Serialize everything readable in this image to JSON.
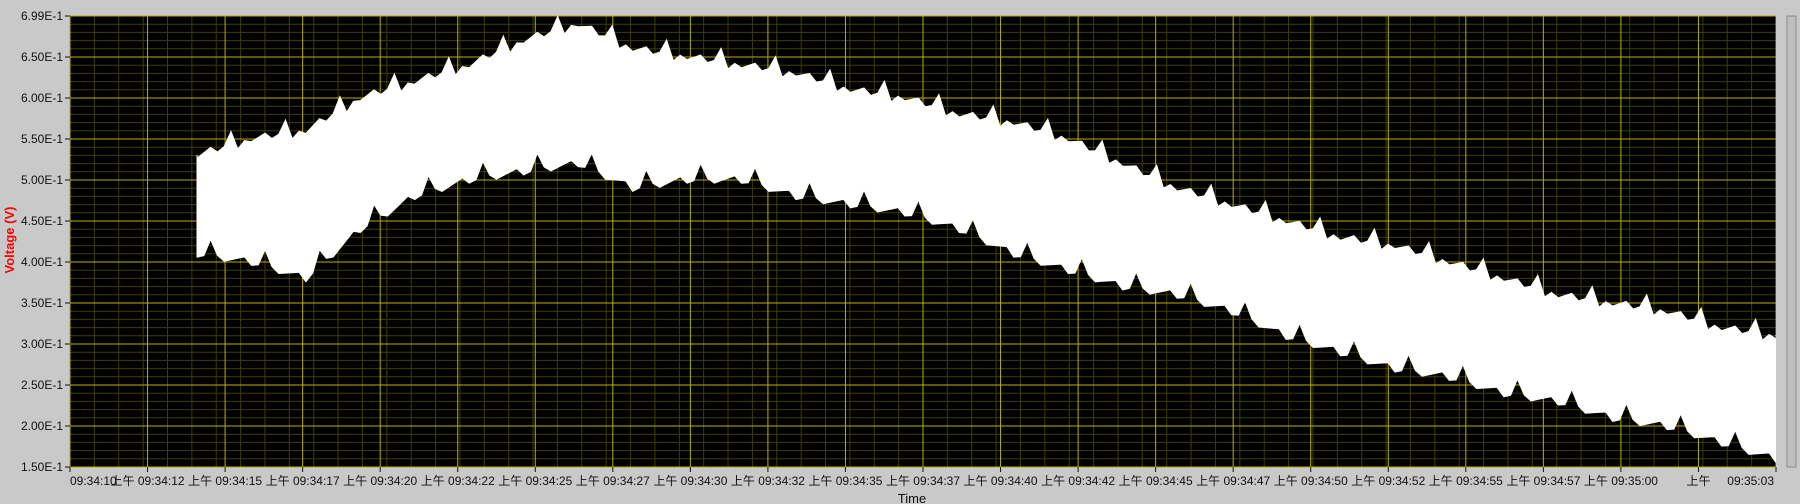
{
  "app": {
    "panel": "waveform-graph"
  },
  "colors": {
    "panel_bg": "#c9c9c9",
    "plot_bg": "#000000",
    "grid_major": "#b8b000",
    "grid_minor": "#3e3e00",
    "signal": "#ffffff",
    "axis_text": "#111111",
    "ylabel": "#ff0000"
  },
  "chart_data": {
    "type": "area",
    "title": "",
    "xlabel": "Time",
    "ylabel": "Voltage (V)",
    "grid": true,
    "legend": "none",
    "ylim": [
      0.15,
      0.699
    ],
    "xlim_labels": [
      "09:34:10",
      "09:35:03"
    ],
    "y_ticks": [
      "6.99E-1",
      "6.50E-1",
      "6.00E-1",
      "5.50E-1",
      "5.00E-1",
      "4.50E-1",
      "4.00E-1",
      "3.50E-1",
      "3.00E-1",
      "2.50E-1",
      "2.00E-1",
      "1.50E-1"
    ],
    "x_ticks": [
      "09:34:10",
      "上午 09:34:12",
      "上午 09:34:15",
      "上午 09:34:17",
      "上午 09:34:20",
      "上午 09:34:22",
      "上午 09:34:25",
      "上午 09:34:27",
      "上午 09:34:30",
      "上午 09:34:32",
      "上午 09:34:35",
      "上午 09:34:37",
      "上午 09:34:40",
      "上午 09:34:42",
      "上午 09:34:45",
      "上午 09:34:47",
      "上午 09:34:50",
      "上午 09:34:52",
      "上午 09:34:55",
      "上午 09:34:57",
      "上午 09:35:00",
      "上午",
      "09:35:03"
    ],
    "series": [
      {
        "values_upper": [
          0.53,
          0.55,
          0.56,
          0.6,
          0.62,
          0.64,
          0.67,
          0.69,
          0.66,
          0.65,
          0.64,
          0.63,
          0.61,
          0.6,
          0.58,
          0.57,
          0.55,
          0.52,
          0.49,
          0.47,
          0.45,
          0.43,
          0.42,
          0.4,
          0.38,
          0.36,
          0.35,
          0.34,
          0.32,
          0.31
        ],
        "values_lower": [
          0.41,
          0.4,
          0.38,
          0.44,
          0.48,
          0.5,
          0.51,
          0.52,
          0.49,
          0.5,
          0.5,
          0.48,
          0.47,
          0.46,
          0.44,
          0.41,
          0.39,
          0.37,
          0.36,
          0.34,
          0.31,
          0.29,
          0.27,
          0.26,
          0.24,
          0.23,
          0.21,
          0.2,
          0.18,
          0.16
        ]
      }
    ]
  }
}
